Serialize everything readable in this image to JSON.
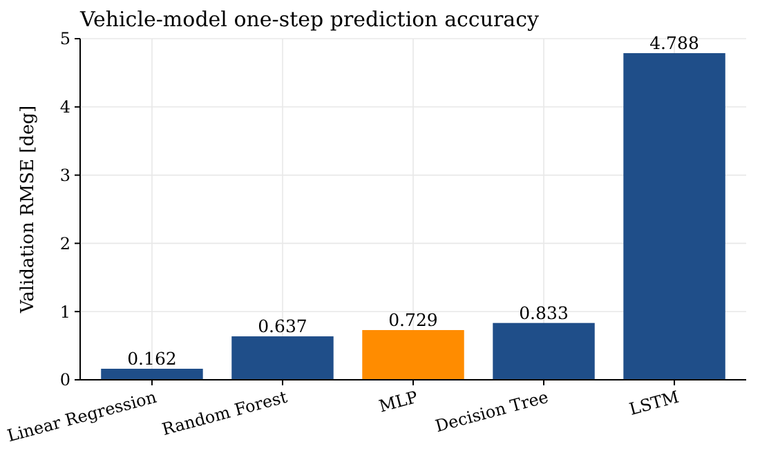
{
  "chart_data": {
    "type": "bar",
    "title": "Vehicle-model one-step prediction accuracy",
    "ylabel": "Validation RMSE [deg]",
    "categories": [
      "Linear Regression",
      "Random Forest",
      "MLP",
      "Decision Tree",
      "LSTM"
    ],
    "values": [
      0.162,
      0.637,
      0.729,
      0.833,
      4.788
    ],
    "colors": [
      "#1f4e89",
      "#1f4e89",
      "#ff8c00",
      "#1f4e89",
      "#1f4e89"
    ],
    "ylim": [
      0,
      5
    ],
    "yticks": [
      0,
      1,
      2,
      3,
      4,
      5
    ],
    "grid": true,
    "data_labels": true
  }
}
